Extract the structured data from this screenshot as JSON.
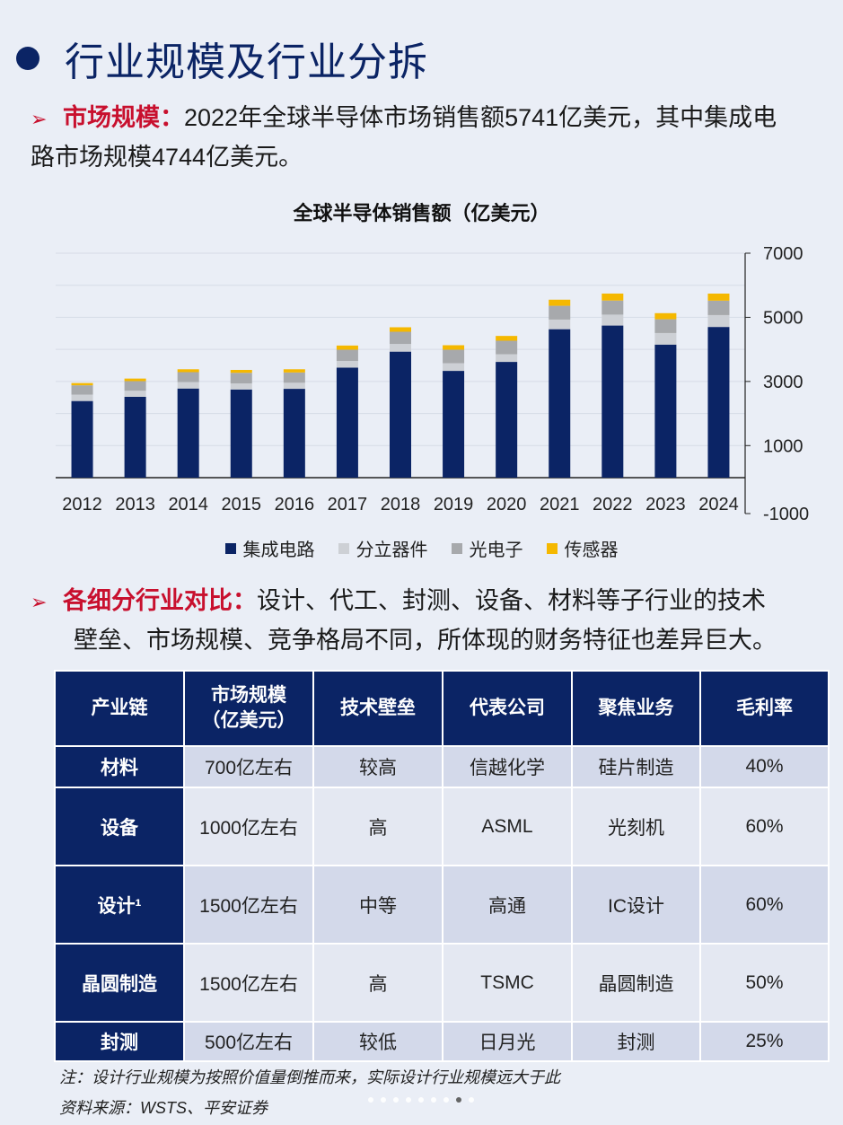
{
  "page": {
    "title": "行业规模及行业分拆"
  },
  "para1": {
    "arrow": "➢",
    "key": "市场规模：",
    "text": "2022年全球半导体市场销售额5741亿美元，其中集成电",
    "text2": "路市场规模4744亿美元。"
  },
  "para2": {
    "arrow": "➢",
    "key": "各细分行业对比：",
    "text": "设计、代工、封测、设备、材料等子行业的技术",
    "text2": "壁垒、市场规模、竞争格局不同，所体现的财务特征也差异巨大。"
  },
  "chart_data": {
    "type": "bar",
    "stacked": true,
    "title": "全球半导体销售额（亿美元）",
    "categories": [
      "2012",
      "2013",
      "2014",
      "2015",
      "2016",
      "2017",
      "2018",
      "2019",
      "2020",
      "2021",
      "2022",
      "2023",
      "2024"
    ],
    "series": [
      {
        "name": "集成电路",
        "color": "#0b2465",
        "values": [
          2390,
          2520,
          2780,
          2750,
          2770,
          3430,
          3930,
          3330,
          3610,
          4630,
          4744,
          4150,
          4700
        ]
      },
      {
        "name": "分立器件",
        "color": "#cdd0d5",
        "values": [
          200,
          190,
          200,
          190,
          190,
          210,
          240,
          240,
          240,
          300,
          340,
          360,
          370
        ]
      },
      {
        "name": "光电子",
        "color": "#a7a9ac",
        "values": [
          290,
          300,
          310,
          330,
          320,
          350,
          380,
          420,
          420,
          430,
          440,
          430,
          450
        ]
      },
      {
        "name": "传感器",
        "color": "#f5b800",
        "values": [
          70,
          80,
          90,
          90,
          100,
          130,
          140,
          140,
          150,
          190,
          217,
          190,
          220
        ]
      }
    ],
    "ylim": [
      -1000,
      7000
    ],
    "yticks": [
      7000,
      5000,
      3000,
      1000,
      -1000
    ],
    "grid": true,
    "legend": "bottom"
  },
  "table": {
    "headers": [
      "产业链",
      "市场规模\n（亿美元）",
      "技术壁垒",
      "代表公司",
      "聚焦业务",
      "毛利率"
    ],
    "rows": [
      [
        "材料",
        "700亿左右",
        "较高",
        "信越化学",
        "硅片制造",
        "40%"
      ],
      [
        "设备",
        "1000亿左右",
        "高",
        "ASML",
        "光刻机",
        "60%"
      ],
      [
        "设计¹",
        "1500亿左右",
        "中等",
        "高通",
        "IC设计",
        "60%"
      ],
      [
        "晶圆制造",
        "1500亿左右",
        "高",
        "TSMC",
        "晶圆制造",
        "50%"
      ],
      [
        "封测",
        "500亿左右",
        "较低",
        "日月光",
        "封测",
        "25%"
      ]
    ]
  },
  "footer": {
    "note": "注：设计行业规模为按照价值量倒推而来，实际设计行业规模远大于此",
    "source": "资料来源：WSTS、平安证券"
  }
}
